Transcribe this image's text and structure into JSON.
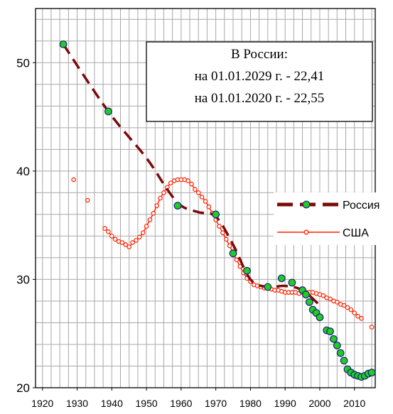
{
  "chart_data": {
    "type": "line",
    "title": "",
    "xlabel": "",
    "ylabel": "",
    "xlim": [
      1918,
      2016
    ],
    "ylim": [
      20,
      55
    ],
    "xticks": [
      1920,
      1930,
      1940,
      1950,
      1960,
      1970,
      1980,
      1990,
      2000,
      2010
    ],
    "yticks": [
      20,
      30,
      40,
      50
    ],
    "grid": true,
    "legend_position": "right",
    "annotation": {
      "lines": [
        "В России:",
        "на 01.01.2029 г. - 22,41",
        "на 01.01.2020 г. - 22,55"
      ]
    },
    "series": [
      {
        "name": "Россия",
        "role": "russia-points",
        "color": "#22cc22",
        "edge": "#1a237e",
        "x": [
          1926,
          1939,
          1959,
          1970,
          1975,
          1979,
          1985,
          1989,
          1992,
          1995,
          1996,
          1997,
          1998,
          1999,
          2000,
          2002,
          2003,
          2004,
          2005,
          2006,
          2007,
          2008,
          2009,
          2010,
          2011,
          2012,
          2013,
          2014,
          2015
        ],
        "y": [
          51.7,
          45.5,
          36.8,
          36.0,
          32.4,
          30.8,
          29.3,
          30.1,
          29.7,
          29.0,
          28.6,
          27.9,
          27.2,
          26.9,
          26.5,
          25.3,
          25.2,
          24.5,
          23.9,
          23.2,
          22.5,
          21.7,
          21.4,
          21.2,
          21.1,
          21.0,
          21.1,
          21.3,
          21.4
        ]
      },
      {
        "name": "Россия",
        "role": "russia-trend",
        "color": "#7b0a0a",
        "x": [
          1926,
          1939,
          1950,
          1956,
          1960,
          1965,
          1970,
          1975,
          1980,
          1985,
          1990,
          1995,
          2000
        ],
        "y": [
          51.7,
          45.5,
          41.2,
          38.3,
          36.8,
          36.2,
          35.8,
          33.2,
          30.0,
          29.3,
          29.4,
          29.0,
          27.6
        ]
      },
      {
        "name": "США",
        "role": "usa",
        "color": "#ff2200",
        "x": [
          1929,
          1933,
          1938,
          1939,
          1940,
          1941,
          1942,
          1943,
          1944,
          1945,
          1946,
          1947,
          1948,
          1949,
          1950,
          1951,
          1952,
          1953,
          1954,
          1955,
          1956,
          1957,
          1958,
          1959,
          1960,
          1961,
          1962,
          1963,
          1964,
          1965,
          1966,
          1967,
          1968,
          1969,
          1970,
          1971,
          1972,
          1973,
          1974,
          1975,
          1976,
          1977,
          1978,
          1979,
          1980,
          1981,
          1982,
          1983,
          1984,
          1985,
          1986,
          1987,
          1988,
          1989,
          1990,
          1991,
          1992,
          1993,
          1994,
          1995,
          1996,
          1997,
          1998,
          1999,
          2000,
          2001,
          2002,
          2003,
          2004,
          2005,
          2006,
          2007,
          2008,
          2009,
          2010,
          2011,
          2012,
          2015
        ],
        "y": [
          39.2,
          37.3,
          34.7,
          34.4,
          34.0,
          33.7,
          33.5,
          33.4,
          33.2,
          33.0,
          33.4,
          33.6,
          33.9,
          34.3,
          34.9,
          35.5,
          36.1,
          36.8,
          37.5,
          38.0,
          38.5,
          38.9,
          39.1,
          39.2,
          39.2,
          39.2,
          39.1,
          38.8,
          38.3,
          38.0,
          37.6,
          37.2,
          36.7,
          36.1,
          35.5,
          34.9,
          34.3,
          33.7,
          33.1,
          32.4,
          31.8,
          31.2,
          30.6,
          30.1,
          29.8,
          29.5,
          29.4,
          29.3,
          29.2,
          29.2,
          29.1,
          29.0,
          29.0,
          28.9,
          28.8,
          28.8,
          28.8,
          28.8,
          28.7,
          28.8,
          28.8,
          28.8,
          28.8,
          28.7,
          28.6,
          28.5,
          28.3,
          28.2,
          28.0,
          27.9,
          27.7,
          27.6,
          27.4,
          27.2,
          26.9,
          26.6,
          26.4,
          25.6
        ]
      }
    ]
  }
}
